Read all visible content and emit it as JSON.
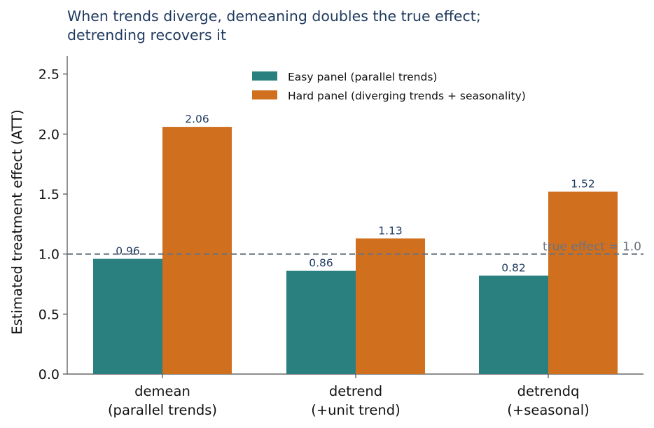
{
  "chart_data": {
    "type": "bar",
    "title_lines": [
      "When trends diverge, demeaning doubles the true effect;",
      "detrending recovers it"
    ],
    "xlabel": "",
    "ylabel": "Estimated treatment effect (ATT)",
    "categories": [
      [
        "demean",
        "(parallel trends)"
      ],
      [
        "detrend",
        "(+unit trend)"
      ],
      [
        "detrendq",
        "(+seasonal)"
      ]
    ],
    "series": [
      {
        "name": "Easy panel (parallel trends)",
        "values": [
          0.96,
          0.86,
          0.82
        ],
        "labels": [
          "0.96",
          "0.86",
          "0.82"
        ],
        "color": "#2a7f7f"
      },
      {
        "name": "Hard panel (diverging trends + seasonality)",
        "values": [
          2.06,
          1.13,
          1.52
        ],
        "labels": [
          "2.06",
          "1.13",
          "1.52"
        ],
        "color": "#d0701f"
      }
    ],
    "ylim": [
      0,
      2.65
    ],
    "yticks": [
      "0.0",
      "0.5",
      "1.0",
      "1.5",
      "2.0",
      "2.5"
    ],
    "reference_line": {
      "value": 1.0,
      "label": "true effect = 1.0",
      "color": "#6b7280",
      "style": "dashed"
    },
    "grid": false,
    "legend_position": "top-center",
    "label_color": "#1f3a5f"
  }
}
